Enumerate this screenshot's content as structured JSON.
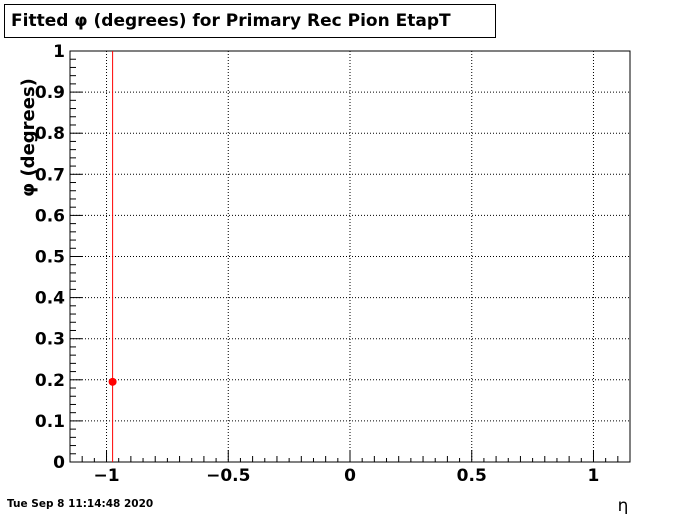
{
  "title": "Fitted φ (degrees) for Primary Rec Pion EtapT",
  "timestamp": "Tue Sep  8 11:14:48 2020",
  "colors": {
    "frame": "#000000",
    "grid": "#000000",
    "marker": "#ff0000",
    "vline": "#ff0000"
  },
  "chart_data": {
    "type": "scatter",
    "title": "Fitted φ (degrees) for Primary Rec Pion EtapT",
    "xlabel": "η",
    "ylabel": "φ (degrees)",
    "xlim": [
      -1.15,
      1.15
    ],
    "ylim": [
      0,
      1
    ],
    "x_ticks": [
      -1,
      -0.5,
      0,
      0.5,
      1
    ],
    "x_tick_labels": [
      "−1",
      "−0.5",
      "0",
      "0.5",
      "1"
    ],
    "y_ticks": [
      0,
      0.1,
      0.2,
      0.3,
      0.4,
      0.5,
      0.6,
      0.7,
      0.8,
      0.9,
      1
    ],
    "y_tick_labels": [
      "0",
      "0.1",
      "0.2",
      "0.3",
      "0.4",
      "0.5",
      "0.6",
      "0.7",
      "0.8",
      "0.9",
      "1"
    ],
    "grid": true,
    "points": [
      {
        "x": -0.975,
        "y": 0.195
      }
    ],
    "vertical_line": {
      "x": -0.975
    }
  }
}
